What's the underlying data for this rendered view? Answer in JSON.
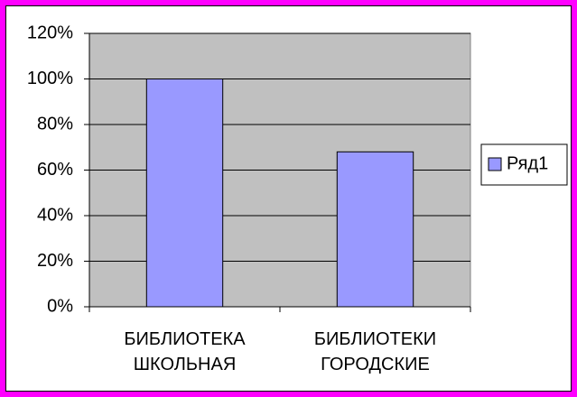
{
  "chart_data": {
    "type": "bar",
    "categories": [
      "БИБЛИОТЕКА ШКОЛЬНАЯ",
      "БИБЛИОТЕКИ ГОРОДСКИЕ"
    ],
    "series": [
      {
        "name": "Ряд1",
        "color": "#9999ff",
        "values": [
          100,
          68
        ]
      }
    ],
    "ylim": [
      0,
      120
    ],
    "yticks": [
      {
        "value": 0,
        "label": "0%"
      },
      {
        "value": 20,
        "label": "20%"
      },
      {
        "value": 40,
        "label": "40%"
      },
      {
        "value": 60,
        "label": "60%"
      },
      {
        "value": 80,
        "label": "80%"
      },
      {
        "value": 100,
        "label": "100%"
      },
      {
        "value": 120,
        "label": "120%"
      }
    ],
    "grid": true,
    "legend": "right"
  }
}
